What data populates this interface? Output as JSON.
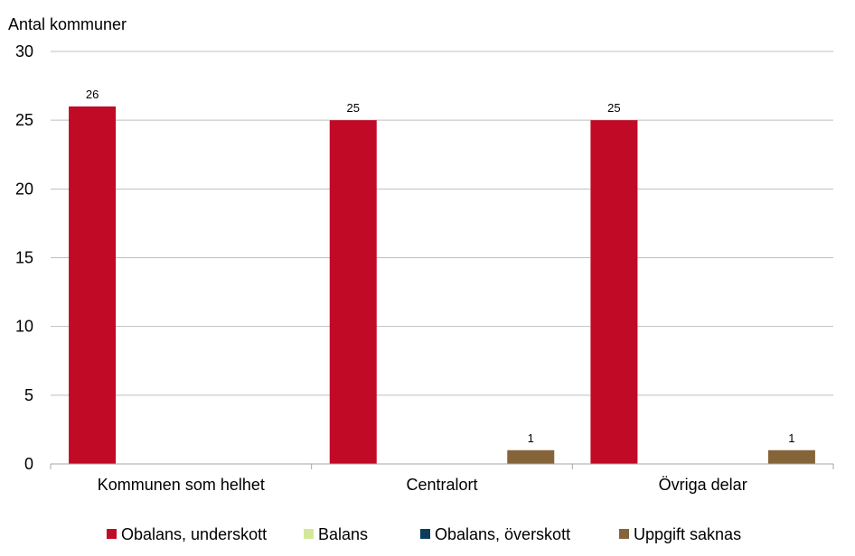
{
  "chart_data": {
    "type": "bar",
    "title": "",
    "ylabel": "Antal kommuner",
    "xlabel": "",
    "ylim": [
      0,
      30
    ],
    "yticks": [
      "0",
      "5",
      "10",
      "15",
      "20",
      "25",
      "30"
    ],
    "ytick_values": [
      0,
      5,
      10,
      15,
      20,
      25,
      30
    ],
    "grid": true,
    "legend_position": "bottom",
    "categories": [
      "Kommunen som helhet",
      "Centralort",
      "Övriga delar"
    ],
    "series": [
      {
        "name": "Obalans, underskott",
        "color": "#C00A26",
        "values": [
          26,
          25,
          25
        ]
      },
      {
        "name": "Balans",
        "color": "#D4E89A",
        "values": [
          0,
          0,
          0
        ]
      },
      {
        "name": "Obalans, överskott",
        "color": "#0B3D5C",
        "values": [
          0,
          0,
          0
        ]
      },
      {
        "name": "Uppgift saknas",
        "color": "#86643A",
        "values": [
          0,
          1,
          1
        ]
      }
    ]
  }
}
